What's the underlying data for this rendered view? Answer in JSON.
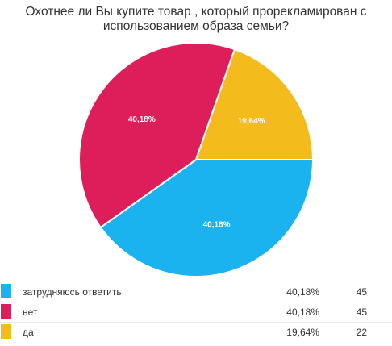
{
  "chart_data": {
    "type": "pie",
    "title_lines": [
      "Охотнее ли Вы купите товар , который прорекламирован с",
      "использованием образа семьи?"
    ],
    "slices": [
      {
        "name": "затрудняюсь ответить",
        "percent": 40.18,
        "percent_label": "40,18%",
        "count": 45,
        "color": "#1ab2ef"
      },
      {
        "name": "нет",
        "percent": 40.18,
        "percent_label": "40,18%",
        "count": 45,
        "color": "#de1e5a"
      },
      {
        "name": "да",
        "percent": 19.64,
        "percent_label": "19,64%",
        "count": 22,
        "color": "#f3bb1c"
      }
    ],
    "legend_placement": "bottom"
  }
}
